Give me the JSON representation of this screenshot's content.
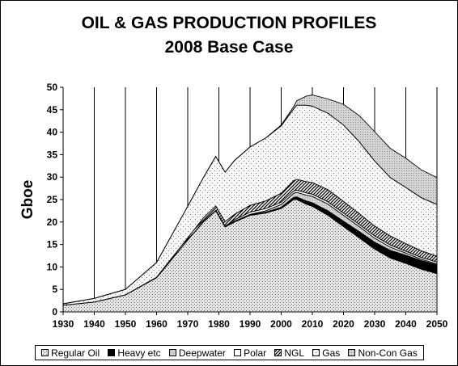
{
  "chart_data": {
    "type": "area",
    "stacked": true,
    "title": "OIL & GAS PRODUCTION PROFILES",
    "subtitle": "2008 Base Case",
    "xlabel": "",
    "ylabel": "Gboe",
    "xlim": [
      1930,
      2050
    ],
    "ylim": [
      0,
      50
    ],
    "x_ticks": [
      "1930",
      "1940",
      "1950",
      "1960",
      "1970",
      "1980",
      "1990",
      "2000",
      "2010",
      "2020",
      "2030",
      "2040",
      "2050"
    ],
    "y_ticks": [
      "0",
      "5",
      "10",
      "15",
      "20",
      "25",
      "30",
      "35",
      "40",
      "45",
      "50"
    ],
    "grid": "vertical",
    "legend_position": "bottom",
    "x": [
      1930,
      1940,
      1950,
      1960,
      1970,
      1975,
      1979,
      1982,
      1985,
      1990,
      1995,
      2000,
      2004,
      2005,
      2008,
      2010,
      2015,
      2020,
      2025,
      2030,
      2035,
      2040,
      2045,
      2050
    ],
    "series": [
      {
        "name": "Regular Oil",
        "fill": "regular-oil",
        "values": [
          1.5,
          2.2,
          3.8,
          7.6,
          16,
          20,
          22.5,
          18.9,
          20,
          21.5,
          22,
          23,
          25,
          25,
          24,
          23.5,
          21.5,
          19,
          16.5,
          14,
          12,
          10.8,
          9.5,
          8.5
        ]
      },
      {
        "name": "Heavy etc",
        "fill": "heavy",
        "values": [
          0,
          0,
          0,
          0,
          0,
          0.1,
          0.1,
          0.1,
          0.1,
          0.1,
          0.2,
          0.3,
          0.5,
          0.6,
          0.7,
          0.8,
          1,
          1.2,
          1.4,
          1.5,
          1.7,
          1.8,
          1.9,
          2
        ]
      },
      {
        "name": "Deepwater",
        "fill": "deepwater",
        "values": [
          0,
          0,
          0,
          0,
          0,
          0,
          0,
          0,
          0.1,
          0.1,
          0.3,
          0.6,
          0.9,
          1,
          1.3,
          1.4,
          1.5,
          1.3,
          1.1,
          0.9,
          0.7,
          0.5,
          0.3,
          0.2
        ]
      },
      {
        "name": "Polar",
        "fill": "polar",
        "values": [
          0,
          0,
          0,
          0,
          0,
          0,
          0,
          0.1,
          0.3,
          0.5,
          0.5,
          0.5,
          0.5,
          0.5,
          0.5,
          0.5,
          0.5,
          0.5,
          0.5,
          0.5,
          0.5,
          0.4,
          0.4,
          0.4
        ]
      },
      {
        "name": "NGL",
        "fill": "ngl",
        "values": [
          0,
          0,
          0,
          0.1,
          0.5,
          0.8,
          1,
          1,
          1.2,
          1.5,
          1.7,
          2,
          2.3,
          2.4,
          2.5,
          2.6,
          2.7,
          2.6,
          2.4,
          2.2,
          2,
          1.7,
          1.5,
          1.3
        ]
      },
      {
        "name": "Gas",
        "fill": "gas",
        "values": [
          0.3,
          0.8,
          1.2,
          3.3,
          7,
          9,
          11,
          11,
          12,
          13,
          14,
          15,
          16,
          16.5,
          17,
          17,
          17,
          17,
          16,
          14.5,
          13,
          12.5,
          11.8,
          11.5
        ]
      },
      {
        "name": "Non-Con Gas",
        "fill": "noncon",
        "values": [
          0,
          0,
          0,
          0,
          0,
          0,
          0,
          0,
          0,
          0,
          0,
          0.2,
          0.5,
          1,
          2,
          2.5,
          3.2,
          4.6,
          5.8,
          6.5,
          6.5,
          6.5,
          6.2,
          6
        ]
      }
    ]
  }
}
